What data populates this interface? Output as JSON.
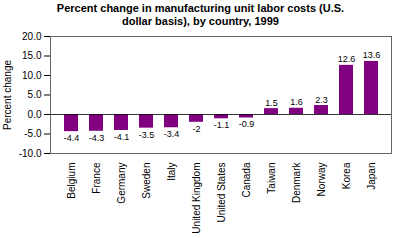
{
  "chart_data": {
    "type": "bar",
    "title": "Percent change in manufacturing unit labor costs (U.S.\ndollar basis), by country, 1999",
    "categories": [
      "Belgium",
      "France",
      "Germany",
      "Sweden",
      "Italy",
      "United Kingdom",
      "United States",
      "Canada",
      "Taiwan",
      "Denmark",
      "Norway",
      "Korea",
      "Japan"
    ],
    "values": [
      -4.4,
      -4.3,
      -4.1,
      -3.5,
      -3.4,
      -2.0,
      -1.1,
      -0.9,
      1.5,
      1.6,
      2.3,
      12.6,
      13.6
    ],
    "color": "#800080",
    "ylabel": "Percent change",
    "ylim": [
      -10.0,
      20.0
    ],
    "yticks": [
      {
        "value": -10.0,
        "label": "-10.0"
      },
      {
        "value": -5.0,
        "label": "-5.0"
      },
      {
        "value": 0.0,
        "label": "0.0"
      },
      {
        "value": 5.0,
        "label": "5.0"
      },
      {
        "value": 10.0,
        "label": "10.0"
      },
      {
        "value": 15.0,
        "label": "15.0"
      },
      {
        "value": 20.0,
        "label": "20.0"
      }
    ],
    "data_labels": true,
    "grid": false
  }
}
